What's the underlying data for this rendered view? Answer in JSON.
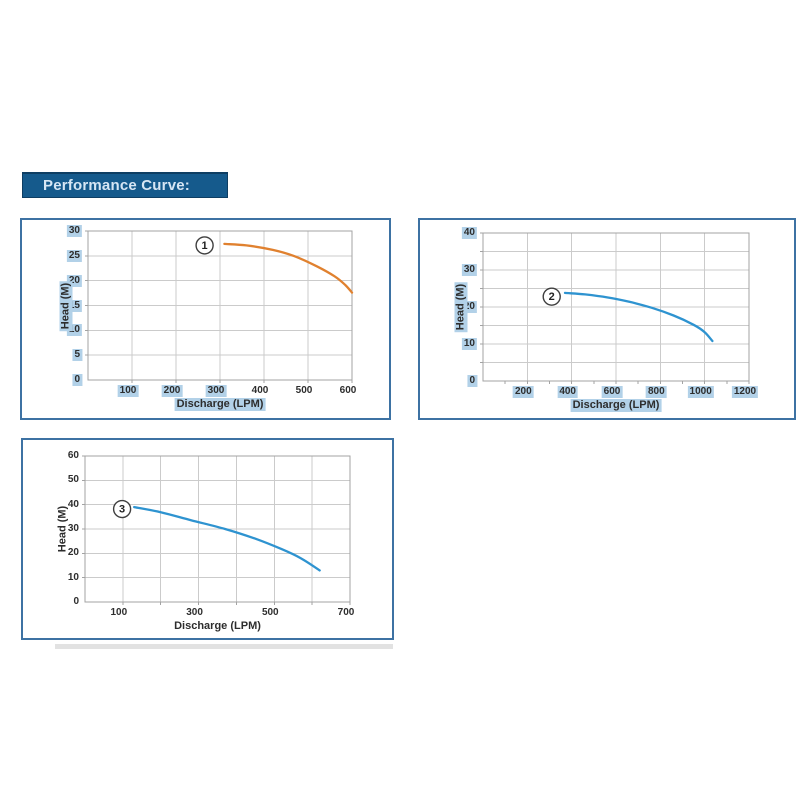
{
  "header": {
    "title": "Performance Curve:"
  },
  "colors": {
    "header_bg": "#155a8c",
    "header_border": "#0e3e63",
    "header_text": "#d6e6f4",
    "panel_border": "#3d72a3",
    "highlight": "#b2d1e8",
    "grid": "#cbcbcb",
    "plot_border": "#a3a3a3",
    "tick_text": "#2d2d2d",
    "marker_stroke": "#3f3f3f",
    "shadow": "#e2e2e2",
    "curve_orange": "#e0812f",
    "curve_blue": "#2e93d0"
  },
  "chart_data": [
    {
      "type": "line",
      "name": "pump-curve-1",
      "marker": "1",
      "marker_at": {
        "x": 265,
        "y": 27.1
      },
      "xlabel": "Discharge (LPM)",
      "ylabel": "Head (M)",
      "xlabel_highlight": true,
      "ylabel_highlight": true,
      "xlim": [
        0,
        600
      ],
      "ylim": [
        0,
        30
      ],
      "x_grid_step": 100,
      "y_grid_step": 5,
      "x_minor_tick_step": 100,
      "legend": "none",
      "grid": true,
      "color": "#e0812f",
      "x_ticks": [
        {
          "v": 100,
          "hl": true
        },
        {
          "v": 200,
          "hl": true
        },
        {
          "v": 300,
          "hl": true
        },
        {
          "v": 400,
          "hl": false
        },
        {
          "v": 500,
          "hl": false
        },
        {
          "v": 600,
          "hl": false
        }
      ],
      "y_ticks": [
        {
          "v": 0,
          "hl": true
        },
        {
          "v": 5,
          "hl": true
        },
        {
          "v": 10,
          "hl": true
        },
        {
          "v": 15,
          "hl": true
        },
        {
          "v": 20,
          "hl": true
        },
        {
          "v": 25,
          "hl": true
        },
        {
          "v": 30,
          "hl": true
        }
      ],
      "points": [
        [
          310,
          27.4
        ],
        [
          360,
          27.1
        ],
        [
          420,
          26.2
        ],
        [
          470,
          24.9
        ],
        [
          520,
          22.9
        ],
        [
          560,
          20.9
        ],
        [
          585,
          19.1
        ],
        [
          600,
          17.6
        ]
      ]
    },
    {
      "type": "line",
      "name": "pump-curve-2",
      "marker": "2",
      "marker_at": {
        "x": 310,
        "y": 22.8
      },
      "xlabel": "Discharge (LPM)",
      "ylabel": "Head (M)",
      "xlabel_highlight": true,
      "ylabel_highlight": true,
      "xlim": [
        0,
        1200
      ],
      "ylim": [
        0,
        40
      ],
      "x_grid_step": 200,
      "y_grid_step": 5,
      "x_minor_tick_step": 100,
      "legend": "none",
      "grid": true,
      "color": "#2e93d0",
      "x_ticks": [
        {
          "v": 200,
          "hl": true
        },
        {
          "v": 400,
          "hl": true
        },
        {
          "v": 600,
          "hl": true
        },
        {
          "v": 800,
          "hl": true
        },
        {
          "v": 1000,
          "hl": true
        },
        {
          "v": 1200,
          "hl": true
        }
      ],
      "y_ticks": [
        {
          "v": 0,
          "hl": true
        },
        {
          "v": 10,
          "hl": true
        },
        {
          "v": 20,
          "hl": true
        },
        {
          "v": 30,
          "hl": true
        },
        {
          "v": 40,
          "hl": true
        }
      ],
      "points": [
        [
          370,
          23.8
        ],
        [
          460,
          23.4
        ],
        [
          560,
          22.6
        ],
        [
          660,
          21.4
        ],
        [
          760,
          19.8
        ],
        [
          860,
          17.7
        ],
        [
          950,
          15.2
        ],
        [
          1000,
          13.2
        ],
        [
          1035,
          10.8
        ]
      ]
    },
    {
      "type": "line",
      "name": "pump-curve-3",
      "marker": "3",
      "marker_at": {
        "x": 98,
        "y": 38.2
      },
      "xlabel": "Discharge (LPM)",
      "ylabel": "Head (M)",
      "xlabel_highlight": false,
      "ylabel_highlight": false,
      "xlim": [
        0,
        700
      ],
      "ylim": [
        0,
        60
      ],
      "x_grid_step": 100,
      "y_grid_step": 10,
      "x_minor_tick_step": 100,
      "legend": "none",
      "grid": true,
      "color": "#2e93d0",
      "x_ticks": [
        {
          "v": 100,
          "hl": false
        },
        {
          "v": 300,
          "hl": false
        },
        {
          "v": 500,
          "hl": false
        },
        {
          "v": 700,
          "hl": false
        }
      ],
      "y_ticks": [
        {
          "v": 0,
          "hl": false
        },
        {
          "v": 10,
          "hl": false
        },
        {
          "v": 20,
          "hl": false
        },
        {
          "v": 30,
          "hl": false
        },
        {
          "v": 40,
          "hl": false
        },
        {
          "v": 50,
          "hl": false
        },
        {
          "v": 60,
          "hl": false
        }
      ],
      "points": [
        [
          130,
          39.0
        ],
        [
          200,
          36.9
        ],
        [
          280,
          33.6
        ],
        [
          370,
          30.0
        ],
        [
          450,
          26.0
        ],
        [
          520,
          21.7
        ],
        [
          570,
          18.0
        ],
        [
          620,
          13.0
        ]
      ]
    }
  ]
}
